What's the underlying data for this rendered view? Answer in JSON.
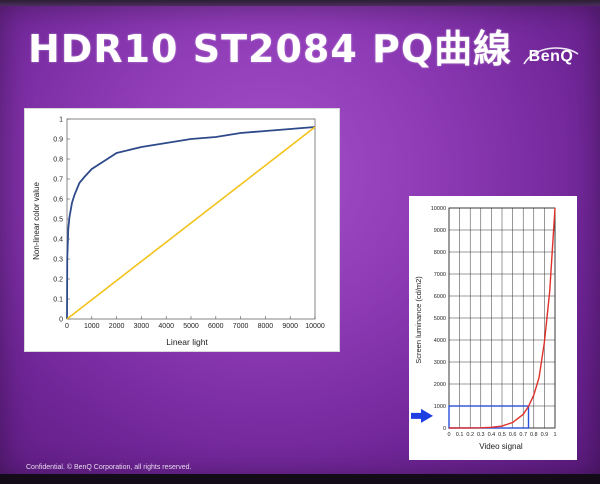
{
  "slide": {
    "title": "HDR10 ST2084 PQ曲線",
    "logo": "BenQ",
    "footer": "Confidential.  © BenQ Corporation, all rights reserved."
  },
  "chart_data": [
    {
      "type": "line",
      "xlabel": "Linear light",
      "ylabel": "Non-linear color value",
      "xlim": [
        0,
        10000
      ],
      "ylim": [
        0,
        1
      ],
      "x_ticks": [
        0,
        1000,
        2000,
        3000,
        4000,
        5000,
        6000,
        7000,
        8000,
        9000,
        10000
      ],
      "y_ticks": [
        0,
        0.1,
        0.2,
        0.3,
        0.4,
        0.5,
        0.6,
        0.7,
        0.8,
        0.9,
        1
      ],
      "y_tick_labels": [
        "0",
        "0.1",
        "0.2",
        "0.3",
        "0.4",
        "0.5",
        "0.6",
        "0.7",
        "0.8",
        "0.9",
        "1"
      ],
      "grid": false,
      "series": [
        {
          "color": "#2f4a8a",
          "x": [
            0,
            10,
            50,
            100,
            200,
            300,
            500,
            700,
            1000,
            1500,
            2000,
            3000,
            4000,
            5000,
            6000,
            7000,
            8000,
            9000,
            10000
          ],
          "values": [
            0,
            0.3,
            0.45,
            0.51,
            0.58,
            0.62,
            0.68,
            0.71,
            0.75,
            0.79,
            0.83,
            0.86,
            0.88,
            0.9,
            0.91,
            0.93,
            0.94,
            0.95,
            0.96
          ]
        },
        {
          "color": "#f2c21a",
          "x": [
            0,
            10000
          ],
          "values": [
            0,
            0.96
          ]
        }
      ]
    },
    {
      "type": "line",
      "xlabel": "Video signal",
      "ylabel": "Screen luminance (cd/m2)",
      "xlim": [
        0,
        1
      ],
      "ylim": [
        0,
        10000
      ],
      "x_ticks": [
        0,
        0.1,
        0.2,
        0.3,
        0.4,
        0.5,
        0.6,
        0.7,
        0.8,
        0.9,
        1
      ],
      "y_ticks": [
        0,
        1000,
        2000,
        3000,
        4000,
        5000,
        6000,
        7000,
        8000,
        9000,
        10000
      ],
      "grid": true,
      "series": [
        {
          "color": "#e0302a",
          "x": [
            0,
            0.1,
            0.2,
            0.3,
            0.4,
            0.5,
            0.6,
            0.7,
            0.75,
            0.8,
            0.85,
            0.9,
            0.95,
            1
          ],
          "values": [
            0,
            1,
            5,
            10,
            30,
            90,
            250,
            620,
            980,
            1500,
            2300,
            3900,
            6200,
            10000
          ]
        }
      ],
      "highlight_box": {
        "x": [
          0,
          0.75
        ],
        "y": [
          0,
          1000
        ],
        "color": "#2a4fd8"
      },
      "arrow_color": "#1f3fe0"
    }
  ]
}
